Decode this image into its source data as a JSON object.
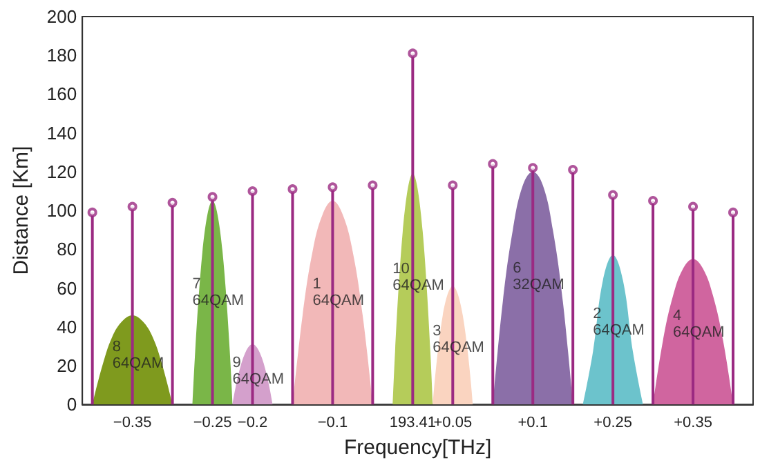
{
  "chart_data": {
    "type": "area",
    "xlabel": "Frequency[THz]",
    "ylabel": "Distance [Km]",
    "categories": [
      null,
      null,
      null,
      null,
      null,
      "−0.35",
      null,
      null,
      null,
      null,
      null,
      null,
      null,
      "−0.25",
      null,
      null,
      null,
      "−0.2",
      null,
      null,
      null,
      null,
      null,
      null,
      null,
      "−0.1",
      null,
      null,
      null,
      null,
      null,
      null,
      null,
      "193.41",
      null,
      null,
      null,
      "+0.05",
      null,
      null,
      null,
      null,
      null,
      null,
      null,
      "+0.1",
      null,
      null,
      null,
      null,
      null,
      null,
      null,
      "+0.25",
      null,
      null,
      null,
      null,
      null,
      null,
      null,
      "+0.35",
      null,
      null,
      null,
      null,
      null,
      null
    ],
    "ylim": [
      0,
      200
    ],
    "yticks": [
      0,
      20,
      40,
      60,
      80,
      100,
      120,
      140,
      160,
      180,
      200
    ],
    "grid": false,
    "series": [
      {
        "color": "#7f9a1e",
        "values": [
          null,
          0,
          20,
          35,
          43,
          46,
          43,
          35,
          20,
          0,
          null,
          null,
          null,
          null,
          null,
          null,
          null,
          null,
          null,
          null,
          null,
          null,
          null,
          null,
          null,
          null,
          null,
          null,
          null,
          null,
          null,
          null,
          null,
          null,
          null,
          null,
          null,
          null,
          null,
          null,
          null,
          null,
          null,
          null,
          null,
          null,
          null,
          null,
          null,
          null,
          null,
          null,
          null,
          null,
          null,
          null,
          null,
          null,
          null,
          null,
          null,
          null,
          null,
          null,
          null,
          null,
          null,
          null
        ]
      },
      {
        "color": "#7ab648",
        "values": [
          null,
          null,
          null,
          null,
          null,
          null,
          null,
          null,
          null,
          null,
          null,
          0,
          79,
          105,
          79,
          0,
          null,
          null,
          null,
          null,
          null,
          null,
          null,
          null,
          null,
          null,
          null,
          null,
          null,
          null,
          null,
          null,
          null,
          null,
          null,
          null,
          null,
          null,
          null,
          null,
          null,
          null,
          null,
          null,
          null,
          null,
          null,
          null,
          null,
          null,
          null,
          null,
          null,
          null,
          null,
          null,
          null,
          null,
          null,
          null,
          null,
          null,
          null,
          null,
          null,
          null,
          null,
          null
        ]
      },
      {
        "color": "#d4a0cc",
        "values": [
          null,
          null,
          null,
          null,
          null,
          null,
          null,
          null,
          null,
          null,
          null,
          null,
          null,
          null,
          null,
          0,
          23,
          31,
          23,
          0,
          null,
          null,
          null,
          null,
          null,
          null,
          null,
          null,
          null,
          null,
          null,
          null,
          null,
          null,
          null,
          null,
          null,
          null,
          null,
          null,
          null,
          null,
          null,
          null,
          null,
          null,
          null,
          null,
          null,
          null,
          null,
          null,
          null,
          null,
          null,
          null,
          null,
          null,
          null,
          null,
          null,
          null,
          null,
          null,
          null,
          null,
          null,
          null
        ]
      },
      {
        "color": "#f2b8b8",
        "values": [
          null,
          null,
          null,
          null,
          null,
          null,
          null,
          null,
          null,
          null,
          null,
          null,
          null,
          null,
          null,
          null,
          null,
          null,
          null,
          null,
          null,
          0,
          46,
          79,
          98,
          105,
          98,
          79,
          46,
          0,
          null,
          null,
          null,
          null,
          null,
          null,
          null,
          null,
          null,
          null,
          null,
          null,
          null,
          null,
          null,
          null,
          null,
          null,
          null,
          null,
          null,
          null,
          null,
          null,
          null,
          null,
          null,
          null,
          null,
          null,
          null,
          null,
          null,
          null,
          null,
          null,
          null,
          null
        ]
      },
      {
        "color": "#b5cc5a",
        "values": [
          null,
          null,
          null,
          null,
          null,
          null,
          null,
          null,
          null,
          null,
          null,
          null,
          null,
          null,
          null,
          null,
          null,
          null,
          null,
          null,
          null,
          null,
          null,
          null,
          null,
          null,
          null,
          null,
          null,
          null,
          null,
          0,
          89,
          119,
          89,
          0,
          null,
          null,
          null,
          null,
          null,
          null,
          null,
          null,
          null,
          null,
          null,
          null,
          null,
          null,
          null,
          null,
          null,
          null,
          null,
          null,
          null,
          null,
          null,
          null,
          null,
          null,
          null,
          null,
          null,
          null,
          null,
          null
        ]
      },
      {
        "color": "#fad4c0",
        "values": [
          null,
          null,
          null,
          null,
          null,
          null,
          null,
          null,
          null,
          null,
          null,
          null,
          null,
          null,
          null,
          null,
          null,
          null,
          null,
          null,
          null,
          null,
          null,
          null,
          null,
          null,
          null,
          null,
          null,
          null,
          null,
          null,
          null,
          null,
          null,
          0,
          46,
          61,
          46,
          0,
          null,
          null,
          null,
          null,
          null,
          null,
          null,
          null,
          null,
          null,
          null,
          null,
          null,
          null,
          null,
          null,
          null,
          null,
          null,
          null,
          null,
          null,
          null,
          null,
          null,
          null,
          null,
          null
        ]
      },
      {
        "color": "#8b6fa8",
        "values": [
          null,
          null,
          null,
          null,
          null,
          null,
          null,
          null,
          null,
          null,
          null,
          null,
          null,
          null,
          null,
          null,
          null,
          null,
          null,
          null,
          null,
          null,
          null,
          null,
          null,
          null,
          null,
          null,
          null,
          null,
          null,
          null,
          null,
          null,
          null,
          null,
          null,
          null,
          null,
          null,
          null,
          0,
          53,
          90,
          113,
          120,
          113,
          90,
          53,
          0,
          null,
          null,
          null,
          null,
          null,
          null,
          null,
          null,
          null,
          null,
          null,
          null,
          null,
          null,
          null,
          null,
          null,
          null
        ]
      },
      {
        "color": "#6cc3cc",
        "values": [
          null,
          null,
          null,
          null,
          null,
          null,
          null,
          null,
          null,
          null,
          null,
          null,
          null,
          null,
          null,
          null,
          null,
          null,
          null,
          null,
          null,
          null,
          null,
          null,
          null,
          null,
          null,
          null,
          null,
          null,
          null,
          null,
          null,
          null,
          null,
          null,
          null,
          null,
          null,
          null,
          null,
          null,
          null,
          null,
          null,
          null,
          null,
          null,
          null,
          null,
          0,
          27,
          64,
          77,
          64,
          27,
          0,
          null,
          null,
          null,
          null,
          null,
          null,
          null,
          null,
          null,
          null,
          null
        ]
      },
      {
        "color": "#d0659f",
        "values": [
          null,
          null,
          null,
          null,
          null,
          null,
          null,
          null,
          null,
          null,
          null,
          null,
          null,
          null,
          null,
          null,
          null,
          null,
          null,
          null,
          null,
          null,
          null,
          null,
          null,
          null,
          null,
          null,
          null,
          null,
          null,
          null,
          null,
          null,
          null,
          null,
          null,
          null,
          null,
          null,
          null,
          null,
          null,
          null,
          null,
          null,
          null,
          null,
          null,
          null,
          null,
          null,
          null,
          null,
          null,
          null,
          null,
          0,
          33,
          56,
          70,
          75,
          70,
          56,
          33,
          0,
          null,
          null
        ]
      },
      {
        "type": "lollipop",
        "color": "#9b2a82",
        "marker": "circle",
        "values": [
          null,
          99,
          null,
          null,
          null,
          102,
          null,
          null,
          null,
          104,
          null,
          null,
          null,
          107,
          null,
          null,
          null,
          110,
          null,
          null,
          null,
          111,
          null,
          null,
          null,
          112,
          null,
          null,
          null,
          113,
          null,
          null,
          null,
          181,
          null,
          null,
          null,
          113,
          null,
          null,
          null,
          124,
          null,
          null,
          null,
          122,
          null,
          null,
          null,
          121,
          null,
          null,
          null,
          108,
          null,
          null,
          null,
          105,
          null,
          null,
          null,
          102,
          null,
          null,
          null,
          99,
          null,
          null
        ]
      }
    ],
    "annotations": [
      "8\n64QAM",
      "7\n64QAM",
      "9\n64QAM",
      "1\n64QAM",
      "10\n64QAM",
      "3\n64QAM",
      "6\n32QAM",
      "2\n64QAM",
      "4\n64QAM"
    ]
  }
}
